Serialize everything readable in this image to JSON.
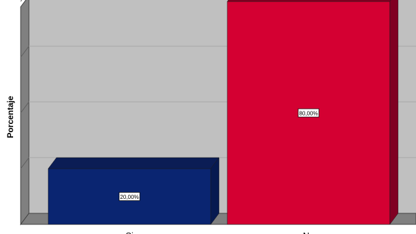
{
  "chart_data": {
    "type": "bar",
    "style": "3d",
    "title": "",
    "xlabel": "",
    "ylabel": "Porcentaje",
    "categories": [
      "Si",
      "No"
    ],
    "values": [
      20.0,
      80.0
    ],
    "data_labels": [
      "20,00%",
      "80,00%"
    ],
    "ylim": [
      0,
      82
    ],
    "grid": true,
    "legend": "none",
    "colors": {
      "bars": [
        "#0a2571",
        "#d40032"
      ],
      "bar_tops": [
        "#0b1d55",
        "#7f0020"
      ],
      "bar_sides": [
        "#071a50",
        "#800022"
      ],
      "wall": "#c0c0c0",
      "wall_side": "#808080",
      "floor": "#808080",
      "grid": "#a8a8a8"
    }
  }
}
